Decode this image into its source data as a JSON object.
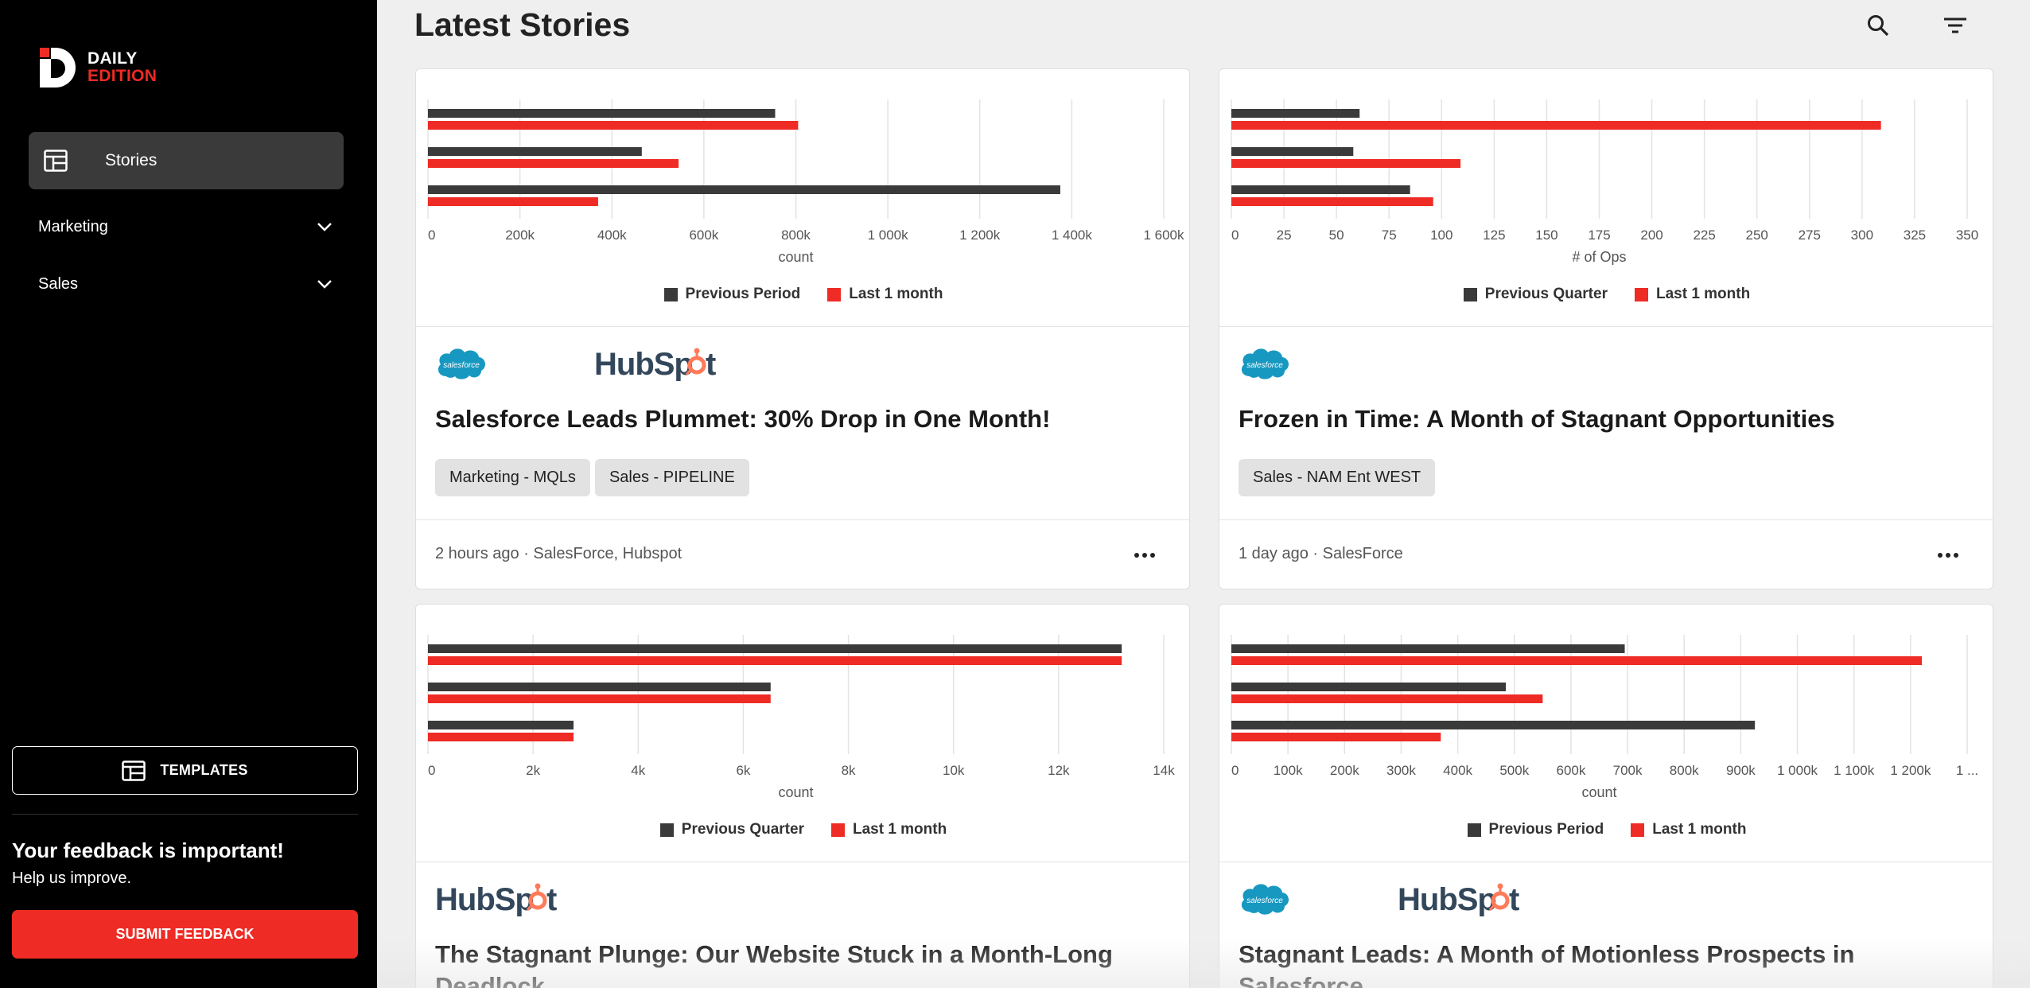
{
  "brand": {
    "line1": "DAILY",
    "line2": "EDITION"
  },
  "sidebar": {
    "stories_label": "Stories",
    "groups": [
      {
        "label": "Marketing"
      },
      {
        "label": "Sales"
      }
    ],
    "templates_label": "TEMPLATES",
    "feedback_title": "Your feedback is important!",
    "feedback_sub": "Help us improve.",
    "feedback_button": "SUBMIT FEEDBACK"
  },
  "main": {
    "title": "Latest Stories"
  },
  "colors": {
    "prev": "#3a3a3a",
    "last": "#ee2b24",
    "accent": "#ee2b24"
  },
  "cards": [
    {
      "title": "Salesforce Leads Plummet: 30% Drop in One Month!",
      "logos": [
        "salesforce",
        "hubspot"
      ],
      "tags": [
        "Marketing - MQLs",
        "Sales - PIPELINE"
      ],
      "meta": "2 hours ago · SalesForce, Hubspot",
      "legend": [
        "Previous Period",
        "Last 1 month"
      ]
    },
    {
      "title": "Frozen in Time: A Month of Stagnant Opportunities",
      "logos": [
        "salesforce"
      ],
      "tags": [
        "Sales - NAM Ent WEST"
      ],
      "meta": "1 day ago · SalesForce",
      "legend": [
        "Previous Quarter",
        "Last 1 month"
      ]
    },
    {
      "title": "The Stagnant Plunge: Our Website Stuck in a Month-Long Deadlock",
      "logos": [
        "hubspot"
      ],
      "tags": [],
      "meta": "",
      "legend": [
        "Previous Quarter",
        "Last 1 month"
      ]
    },
    {
      "title": "Stagnant Leads: A Month of Motionless Prospects in Salesforce",
      "logos": [
        "salesforce",
        "hubspot"
      ],
      "tags": [],
      "meta": "",
      "legend": [
        "Previous Period",
        "Last 1 month"
      ]
    }
  ],
  "chart_data": [
    {
      "type": "bar",
      "orientation": "horizontal",
      "xlabel": "count",
      "xlim": [
        0,
        1600000
      ],
      "ticks": [
        "0",
        "200k",
        "400k",
        "600k",
        "800k",
        "1 000k",
        "1 200k",
        "1 400k",
        "1 600k"
      ],
      "tick_values": [
        0,
        200000,
        400000,
        600000,
        800000,
        1000000,
        1200000,
        1400000,
        1600000
      ],
      "series": [
        {
          "name": "Previous Period",
          "values": [
            755000,
            465000,
            1375000
          ]
        },
        {
          "name": "Last 1 month",
          "values": [
            805000,
            545000,
            370000
          ]
        }
      ]
    },
    {
      "type": "bar",
      "orientation": "horizontal",
      "xlabel": "# of Ops",
      "xlim": [
        0,
        350
      ],
      "ticks": [
        "0",
        "25",
        "50",
        "75",
        "100",
        "125",
        "150",
        "175",
        "200",
        "225",
        "250",
        "275",
        "300",
        "325",
        "350"
      ],
      "tick_values": [
        0,
        25,
        50,
        75,
        100,
        125,
        150,
        175,
        200,
        225,
        250,
        275,
        300,
        325,
        350
      ],
      "series": [
        {
          "name": "Previous Quarter",
          "values": [
            61,
            58,
            85
          ]
        },
        {
          "name": "Last 1 month",
          "values": [
            309,
            109,
            96
          ]
        }
      ]
    },
    {
      "type": "bar",
      "orientation": "horizontal",
      "xlabel": "count",
      "xlim": [
        0,
        14000
      ],
      "ticks": [
        "0",
        "2k",
        "4k",
        "6k",
        "8k",
        "10k",
        "12k",
        "14k"
      ],
      "tick_values": [
        0,
        2000,
        4000,
        6000,
        8000,
        10000,
        12000,
        14000
      ],
      "series": [
        {
          "name": "Previous Quarter",
          "values": [
            13200,
            6520,
            2770
          ]
        },
        {
          "name": "Last 1 month",
          "values": [
            13200,
            6520,
            2770
          ]
        }
      ]
    },
    {
      "type": "bar",
      "orientation": "horizontal",
      "xlabel": "count",
      "xlim": [
        0,
        1300000
      ],
      "ticks": [
        "0",
        "100k",
        "200k",
        "300k",
        "400k",
        "500k",
        "600k",
        "700k",
        "800k",
        "900k",
        "1 000k",
        "1 100k",
        "1 200k",
        "1 ..."
      ],
      "tick_values": [
        0,
        100000,
        200000,
        300000,
        400000,
        500000,
        600000,
        700000,
        800000,
        900000,
        1000000,
        1100000,
        1200000,
        1300000
      ],
      "series": [
        {
          "name": "Previous Period",
          "values": [
            695000,
            485000,
            925000
          ]
        },
        {
          "name": "Last 1 month",
          "values": [
            1220000,
            550000,
            370000
          ]
        }
      ]
    }
  ]
}
